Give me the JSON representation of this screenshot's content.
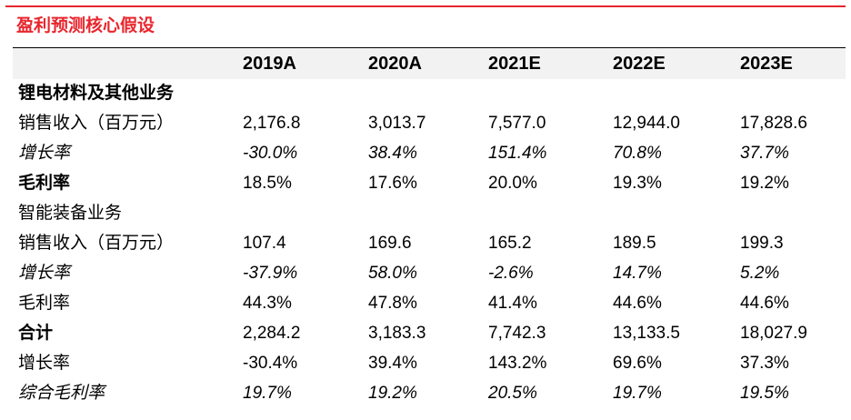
{
  "title": "盈利预测核心假设",
  "colors": {
    "accent": "#e8262d",
    "header_bg": "#f2f2f2"
  },
  "header": [
    "2019A",
    "2020A",
    "2021E",
    "2022E",
    "2023E"
  ],
  "rows": [
    {
      "label": "锂电材料及其他业务",
      "style": "bold",
      "values": [
        "",
        "",
        "",
        "",
        ""
      ]
    },
    {
      "label": "销售收入（百万元）",
      "style": "normal",
      "values": [
        "2,176.8",
        "3,013.7",
        "7,577.0",
        "12,944.0",
        "17,828.6"
      ]
    },
    {
      "label": "增长率",
      "style": "italic",
      "values": [
        "-30.0%",
        "38.4%",
        "151.4%",
        "70.8%",
        "37.7%"
      ]
    },
    {
      "label": "毛利率",
      "style": "bold",
      "values": [
        "18.5%",
        "17.6%",
        "20.0%",
        "19.3%",
        "19.2%"
      ]
    },
    {
      "label": "智能装备业务",
      "style": "normal",
      "values": [
        "",
        "",
        "",
        "",
        ""
      ]
    },
    {
      "label": "销售收入（百万元）",
      "style": "normal",
      "values": [
        "107.4",
        "169.6",
        "165.2",
        "189.5",
        "199.3"
      ]
    },
    {
      "label": "增长率",
      "style": "italic",
      "values": [
        "-37.9%",
        "58.0%",
        "-2.6%",
        "14.7%",
        "5.2%"
      ]
    },
    {
      "label": "毛利率",
      "style": "normal",
      "values": [
        "44.3%",
        "47.8%",
        "41.4%",
        "44.6%",
        "44.6%"
      ]
    },
    {
      "label": "合计",
      "style": "bold",
      "values": [
        "2,284.2",
        "3,183.3",
        "7,742.3",
        "13,133.5",
        "18,027.9"
      ]
    },
    {
      "label": "增长率",
      "style": "normal",
      "values": [
        "-30.4%",
        "39.4%",
        "143.2%",
        "69.6%",
        "37.3%"
      ]
    },
    {
      "label": "综合毛利率",
      "style": "italic",
      "values": [
        "19.7%",
        "19.2%",
        "20.5%",
        "19.7%",
        "19.5%"
      ]
    }
  ]
}
